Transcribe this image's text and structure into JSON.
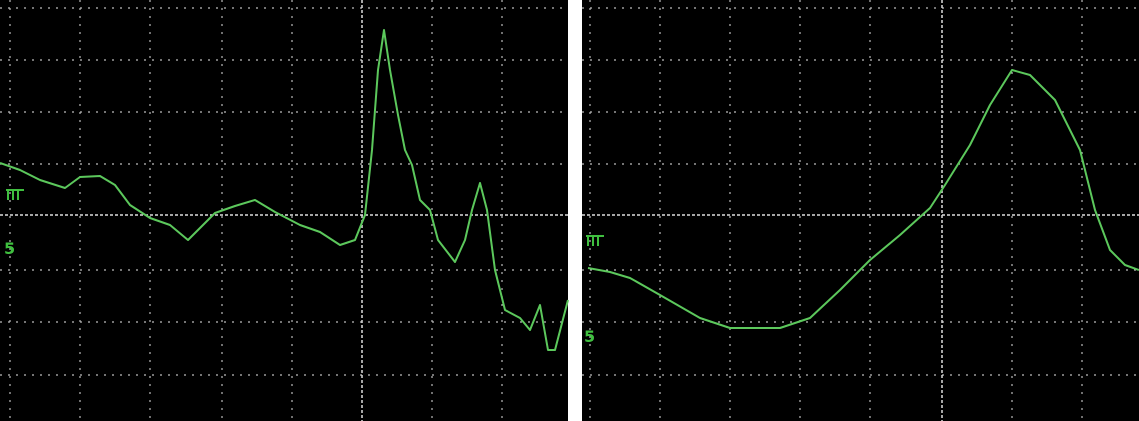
{
  "panels": [
    {
      "marker": "5"
    },
    {
      "marker": "5"
    }
  ]
}
